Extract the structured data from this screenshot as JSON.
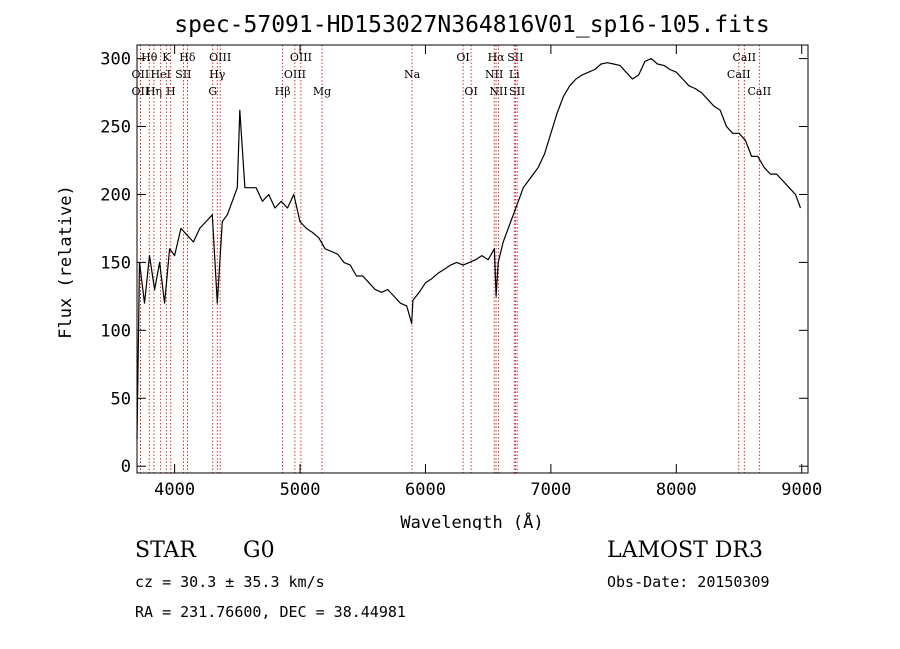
{
  "chart_data": {
    "type": "line",
    "title": "spec-57091-HD153027N364816V01_sp16-105.fits",
    "xlabel": "Wavelength (Å)",
    "ylabel": "Flux (relative)",
    "xlim": [
      3700,
      9050
    ],
    "ylim": [
      -5,
      310
    ],
    "xticks": [
      4000,
      5000,
      6000,
      7000,
      8000,
      9000
    ],
    "yticks": [
      0,
      50,
      100,
      150,
      200,
      250,
      300
    ],
    "grid": false,
    "series": [
      {
        "name": "flux",
        "x": [
          3700,
          3720,
          3760,
          3800,
          3840,
          3880,
          3920,
          3960,
          4000,
          4050,
          4100,
          4150,
          4200,
          4250,
          4300,
          4340,
          4380,
          4420,
          4460,
          4500,
          4520,
          4560,
          4600,
          4650,
          4700,
          4750,
          4800,
          4850,
          4900,
          4950,
          5000,
          5050,
          5100,
          5150,
          5200,
          5250,
          5300,
          5350,
          5400,
          5450,
          5500,
          5550,
          5600,
          5650,
          5700,
          5750,
          5800,
          5850,
          5890,
          5900,
          5950,
          6000,
          6050,
          6100,
          6150,
          6200,
          6250,
          6300,
          6350,
          6400,
          6450,
          6500,
          6550,
          6563,
          6580,
          6620,
          6660,
          6700,
          6740,
          6780,
          6820,
          6860,
          6900,
          6950,
          7000,
          7050,
          7100,
          7150,
          7200,
          7250,
          7300,
          7350,
          7400,
          7450,
          7500,
          7550,
          7600,
          7650,
          7700,
          7750,
          7800,
          7850,
          7900,
          7950,
          8000,
          8050,
          8100,
          8150,
          8200,
          8250,
          8300,
          8350,
          8400,
          8450,
          8500,
          8550,
          8600,
          8650,
          8700,
          8750,
          8800,
          8850,
          8900,
          8950,
          8990
        ],
        "y": [
          20,
          150,
          120,
          155,
          130,
          150,
          120,
          160,
          155,
          175,
          170,
          165,
          175,
          180,
          185,
          120,
          180,
          185,
          195,
          205,
          262,
          205,
          205,
          205,
          195,
          200,
          190,
          195,
          190,
          200,
          180,
          175,
          172,
          168,
          160,
          158,
          156,
          150,
          148,
          140,
          140,
          135,
          130,
          128,
          130,
          125,
          120,
          118,
          105,
          122,
          128,
          135,
          138,
          142,
          145,
          148,
          150,
          148,
          150,
          152,
          155,
          152,
          160,
          125,
          150,
          165,
          175,
          185,
          195,
          205,
          210,
          215,
          220,
          230,
          245,
          260,
          272,
          280,
          285,
          288,
          290,
          292,
          296,
          297,
          296,
          295,
          290,
          285,
          288,
          298,
          300,
          296,
          295,
          292,
          290,
          285,
          280,
          278,
          275,
          270,
          265,
          262,
          250,
          245,
          245,
          240,
          228,
          228,
          220,
          215,
          215,
          210,
          205,
          200,
          190
        ]
      }
    ],
    "spectral_lines": [
      {
        "name": "Hθ",
        "x": 3798,
        "row": 0
      },
      {
        "name": "OII",
        "x": 3727,
        "row": 1
      },
      {
        "name": "OII",
        "x": 3727,
        "row": 2
      },
      {
        "name": "Hη",
        "x": 3835,
        "row": 2
      },
      {
        "name": "K",
        "x": 3934,
        "row": 0
      },
      {
        "name": "HeI",
        "x": 3889,
        "row": 1
      },
      {
        "name": "SII",
        "x": 4070,
        "row": 1
      },
      {
        "name": "H",
        "x": 3969,
        "row": 2
      },
      {
        "name": "Hδ",
        "x": 4102,
        "row": 0
      },
      {
        "name": "OIII",
        "x": 4363,
        "row": 0
      },
      {
        "name": "Hγ",
        "x": 4340,
        "row": 1
      },
      {
        "name": "G",
        "x": 4304,
        "row": 2
      },
      {
        "name": "Hβ",
        "x": 4861,
        "row": 2
      },
      {
        "name": "OIII",
        "x": 5007,
        "row": 0
      },
      {
        "name": "OIII",
        "x": 4959,
        "row": 1
      },
      {
        "name": "Mg",
        "x": 5175,
        "row": 2
      },
      {
        "name": "Na",
        "x": 5893,
        "row": 1
      },
      {
        "name": "OI",
        "x": 6300,
        "row": 0
      },
      {
        "name": "OI",
        "x": 6364,
        "row": 2
      },
      {
        "name": "Hα",
        "x": 6563,
        "row": 0
      },
      {
        "name": "SII",
        "x": 6717,
        "row": 0
      },
      {
        "name": "NII",
        "x": 6548,
        "row": 1
      },
      {
        "name": "Li",
        "x": 6708,
        "row": 1
      },
      {
        "name": "NII",
        "x": 6583,
        "row": 2
      },
      {
        "name": "SII",
        "x": 6731,
        "row": 2
      },
      {
        "name": "CaII",
        "x": 8542,
        "row": 0
      },
      {
        "name": "CaII",
        "x": 8498,
        "row": 1
      },
      {
        "name": "CaII",
        "x": 8662,
        "row": 2
      }
    ]
  },
  "info": {
    "object_type": "STAR",
    "subclass": "G0",
    "survey": "LAMOST DR3",
    "redshift": "cz = 30.3 ± 35.3 km/s",
    "obs_date": "Obs-Date: 20150309",
    "coords": "RA = 231.76600, DEC =  38.44981"
  },
  "colors": {
    "line": "#000000",
    "marker": "#cc0000",
    "background": "#ffffff"
  }
}
